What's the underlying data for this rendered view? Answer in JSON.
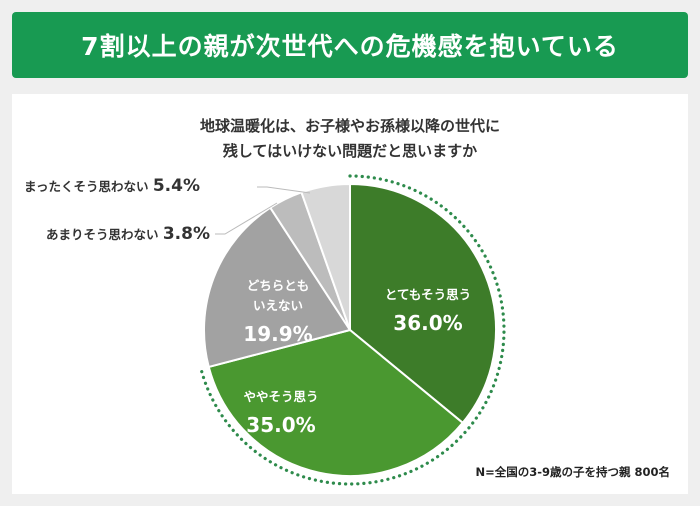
{
  "banner": {
    "title": "7割以上の親が次世代への危機感を抱いている",
    "color": "#189a52"
  },
  "footnote": "N=全国の3-9歳の子を持つ親 800名",
  "chart_data": {
    "type": "pie",
    "title_lines": [
      "地球温暖化は、お子様やお孫様以降の世代に",
      "残してはいけない問題だと思いますか"
    ],
    "categories": [
      "とてもそう思う",
      "ややそう思う",
      "どちらともいえない",
      "あまりそう思わない",
      "まったくそう思わない"
    ],
    "values": [
      36.0,
      35.0,
      19.9,
      3.8,
      5.4
    ],
    "value_labels": [
      "36.0%",
      "35.0%",
      "19.9%",
      "3.8%",
      "5.4%"
    ],
    "inside_label_lines": [
      [
        "とてもそう思う"
      ],
      [
        "ややそう思う"
      ],
      [
        "どちらとも",
        "いえない"
      ]
    ],
    "colors": [
      "#3d7c29",
      "#4a9830",
      "#a2a2a2",
      "#bcbcbc",
      "#d8d8d8"
    ],
    "start": "12 o'clock",
    "direction": "clockwise",
    "highlight": "dotted green arc around とてもそう思う + ややそう思う"
  }
}
